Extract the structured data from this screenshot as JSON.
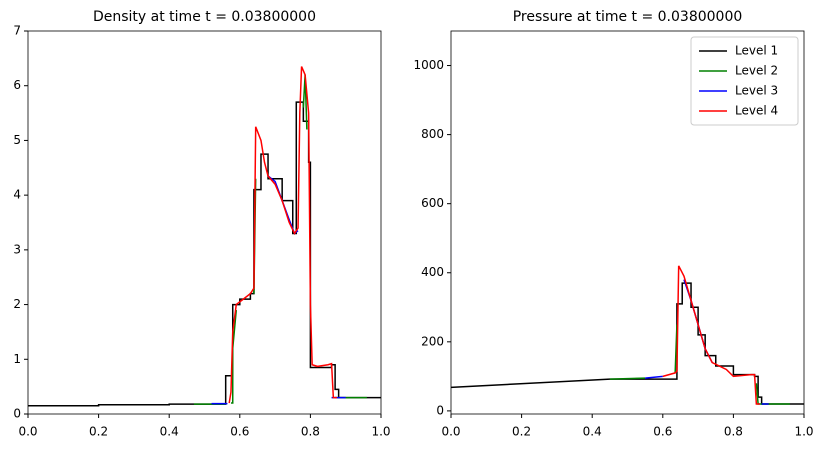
{
  "chart_data": [
    {
      "type": "line",
      "title": "Density at time t =     0.03800000",
      "xlim": [
        0,
        1
      ],
      "xticks": [
        {
          "value": 0,
          "label": "0.0"
        },
        0.2,
        0.4,
        0.6,
        0.8,
        {
          "value": 1,
          "label": "1.0"
        }
      ],
      "ylim": [
        0,
        7
      ],
      "yticks": [
        0,
        1,
        2,
        3,
        4,
        5,
        6,
        7
      ],
      "series": [
        {
          "color": "#000000",
          "x": [
            0,
            0.2,
            0.2,
            0.4,
            0.4,
            0.56,
            0.56,
            0.58,
            0.58,
            0.6,
            0.6,
            0.63,
            0.63,
            0.64,
            0.64,
            0.66,
            0.66,
            0.68,
            0.68,
            0.72,
            0.72,
            0.75,
            0.75,
            0.76,
            0.76,
            0.78,
            0.78,
            0.795,
            0.795,
            0.8,
            0.8,
            0.86,
            0.86,
            0.87,
            0.87,
            0.88,
            0.88,
            1
          ],
          "values": [
            0.15,
            0.15,
            0.17,
            0.17,
            0.18,
            0.18,
            0.7,
            0.7,
            2.0,
            2.0,
            2.1,
            2.1,
            2.2,
            2.2,
            4.1,
            4.1,
            4.75,
            4.75,
            4.3,
            4.3,
            3.9,
            3.9,
            3.3,
            3.3,
            5.7,
            5.7,
            5.35,
            5.35,
            4.6,
            4.6,
            0.85,
            0.85,
            0.9,
            0.9,
            0.45,
            0.45,
            0.3,
            0.3
          ]
        },
        {
          "color": "#008000",
          "x": [
            0.47,
            0.56,
            null,
            0.575,
            0.58,
            0.58,
            0.59,
            null,
            0.64,
            0.645,
            null,
            0.78,
            0.785,
            0.79,
            null,
            0.87,
            0.96
          ],
          "values": [
            0.18,
            0.18,
            null,
            0.2,
            0.2,
            1.2,
            1.9,
            null,
            2.2,
            4.3,
            null,
            5.6,
            6.2,
            5.2,
            null,
            0.3,
            0.3
          ]
        },
        {
          "color": "#0000ff",
          "x": [
            0.52,
            0.565,
            null,
            0.68,
            0.7,
            0.72,
            0.74,
            0.755,
            0.765,
            null,
            0.86,
            0.9
          ],
          "values": [
            0.19,
            0.19,
            null,
            4.35,
            4.25,
            3.9,
            3.55,
            3.3,
            3.35,
            null,
            0.3,
            0.3
          ]
        },
        {
          "color": "#ff0000",
          "x": [
            0.57,
            0.575,
            0.58,
            0.59,
            0.61,
            0.63,
            0.64,
            0.645,
            0.66,
            0.67,
            0.68,
            0.7,
            0.72,
            0.74,
            0.755,
            0.765,
            0.77,
            0.775,
            0.785,
            0.795,
            0.8,
            0.805,
            0.82,
            0.85,
            0.86,
            0.865,
            0.875
          ],
          "values": [
            0.2,
            0.4,
            1.5,
            2.0,
            2.1,
            2.2,
            2.3,
            5.25,
            5.0,
            4.6,
            4.35,
            4.2,
            3.9,
            3.5,
            3.3,
            3.4,
            5.5,
            6.35,
            6.2,
            5.5,
            2.0,
            0.9,
            0.87,
            0.9,
            0.92,
            0.3,
            0.3
          ]
        }
      ]
    },
    {
      "type": "line",
      "title": "Pressure at time t =     0.03800000",
      "xlim": [
        0,
        1
      ],
      "xticks": [
        {
          "value": 0,
          "label": "0.0"
        },
        0.2,
        0.4,
        0.6,
        0.8,
        {
          "value": 1,
          "label": "1.0"
        }
      ],
      "ylim": [
        -9,
        1100
      ],
      "yticks": [
        0,
        200,
        400,
        600,
        800,
        1000
      ],
      "legend": "upper right",
      "series": [
        {
          "name": "Level 1",
          "color": "#000000",
          "x": [
            0,
            0.45,
            0.64,
            0.64,
            0.655,
            0.655,
            0.68,
            0.68,
            0.7,
            0.7,
            0.72,
            0.72,
            0.75,
            0.75,
            0.8,
            0.8,
            0.86,
            0.86,
            0.87,
            0.87,
            0.88,
            0.88,
            1
          ],
          "values": [
            68,
            92,
            92,
            310,
            310,
            370,
            370,
            300,
            300,
            220,
            220,
            160,
            160,
            130,
            130,
            105,
            105,
            100,
            100,
            40,
            40,
            20,
            20
          ]
        },
        {
          "name": "Level 2",
          "color": "#008000",
          "x": [
            0.45,
            0.55,
            null,
            0.635,
            0.64,
            null,
            0.865,
            0.87,
            0.96
          ],
          "values": [
            92,
            95,
            null,
            110,
            250,
            null,
            80,
            20,
            20
          ]
        },
        {
          "name": "Level 3",
          "color": "#0000ff",
          "x": [
            0.55,
            0.6,
            null,
            0.66,
            0.68,
            0.7,
            0.72,
            0.74,
            null,
            0.88,
            0.9
          ],
          "values": [
            95,
            100,
            null,
            380,
            320,
            250,
            180,
            140,
            null,
            20,
            20
          ]
        },
        {
          "name": "Level 4",
          "color": "#ff0000",
          "x": [
            0.6,
            0.635,
            0.64,
            0.645,
            0.66,
            0.68,
            0.7,
            0.72,
            0.74,
            0.78,
            0.8,
            0.85,
            0.86,
            0.865,
            0.875
          ],
          "values": [
            100,
            110,
            115,
            420,
            390,
            320,
            250,
            180,
            140,
            120,
            100,
            105,
            105,
            20,
            20
          ]
        }
      ]
    }
  ]
}
